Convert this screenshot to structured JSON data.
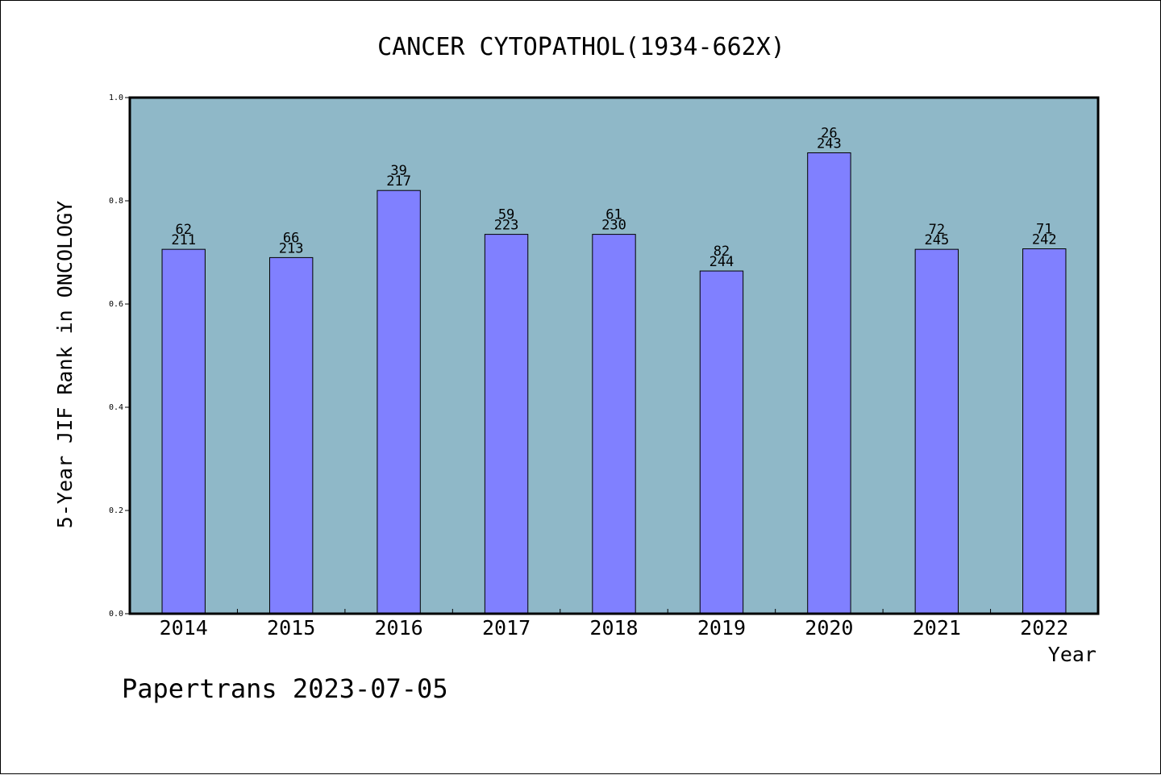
{
  "chart_data": {
    "type": "bar",
    "title": "CANCER CYTOPATHOL(1934-662X)",
    "xlabel": "Year",
    "ylabel": "5-Year JIF Rank in ONCOLOGY",
    "categories": [
      "2014",
      "2015",
      "2016",
      "2017",
      "2018",
      "2019",
      "2020",
      "2021",
      "2022"
    ],
    "values": [
      0.706,
      0.69,
      0.82,
      0.735,
      0.735,
      0.664,
      0.893,
      0.706,
      0.707
    ],
    "rank_labels": [
      "62",
      "66",
      "39",
      "59",
      "61",
      "82",
      "26",
      "72",
      "71"
    ],
    "total_labels": [
      "211",
      "213",
      "217",
      "223",
      "230",
      "244",
      "243",
      "245",
      "242"
    ],
    "ylim": [
      0,
      1.0
    ],
    "yticks": [
      "0.0",
      "0.2",
      "0.4",
      "0.6",
      "0.8",
      "1.0"
    ],
    "grid": false,
    "legend": "none",
    "colors": {
      "plot_background": "#8fb8c8",
      "bar_fill": "#8080ff",
      "bar_stroke": "#000000",
      "axis": "#000000"
    }
  },
  "footer": {
    "watermark": "Papertrans 2023-07-05"
  }
}
